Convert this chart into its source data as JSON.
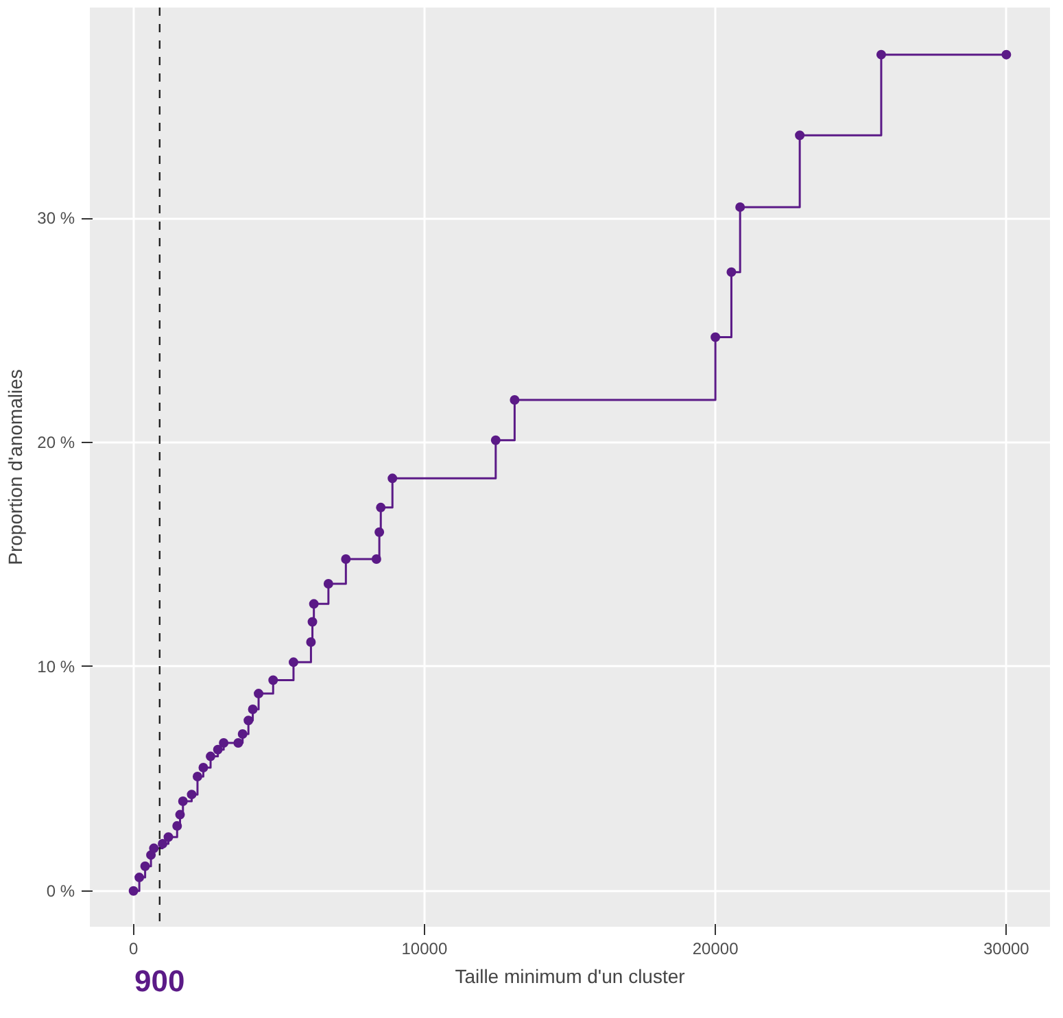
{
  "chart_data": {
    "type": "step",
    "xlabel": "Taille minimum d'un cluster",
    "ylabel": "Proportion d'anomalies",
    "x": [
      0,
      200,
      400,
      600,
      700,
      1000,
      1200,
      1500,
      1600,
      1700,
      2000,
      2200,
      2400,
      2650,
      2900,
      3100,
      3600,
      3750,
      3950,
      4100,
      4300,
      4800,
      5500,
      6100,
      6150,
      6200,
      6700,
      7300,
      8350,
      8450,
      8500,
      8900,
      12450,
      13100,
      20000,
      20550,
      20850,
      22900,
      25700,
      30000
    ],
    "series": [
      {
        "color": "#5b1a87",
        "values": [
          0,
          0.6,
          1.1,
          1.6,
          1.9,
          2.1,
          2.4,
          2.9,
          3.4,
          4.0,
          4.3,
          5.1,
          5.5,
          6.0,
          6.3,
          6.6,
          6.6,
          7.0,
          7.6,
          8.1,
          8.8,
          9.4,
          10.2,
          11.1,
          12.0,
          12.8,
          13.7,
          14.8,
          14.8,
          16.0,
          17.1,
          18.4,
          20.1,
          21.9,
          24.7,
          27.6,
          30.5,
          33.7,
          37.3,
          37.3
        ]
      }
    ],
    "marker": "circle",
    "line_style": "solid",
    "grid": true,
    "xlim": [
      -1500,
      31500
    ],
    "ylim": [
      -1.6,
      39.4
    ],
    "xticks": [
      0,
      10000,
      20000,
      30000
    ],
    "yticks": [
      {
        "value": 0,
        "label": "0 %"
      },
      {
        "value": 10,
        "label": "10 %"
      },
      {
        "value": 20,
        "label": "20 %"
      },
      {
        "value": 30,
        "label": "30 %"
      }
    ],
    "ref_lines": [
      {
        "axis": "x",
        "value": 900,
        "label": "900",
        "color": "#222222",
        "line_style": "dashed"
      }
    ]
  }
}
